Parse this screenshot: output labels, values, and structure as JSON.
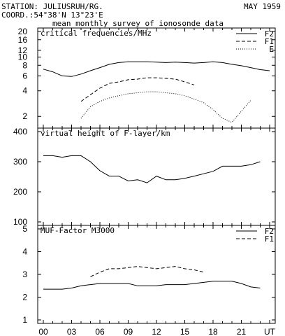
{
  "header": {
    "station": "STATION: JULIUSRUH/RG.",
    "coord": "COORD.:54°38'N 13°23'E",
    "date": "MAY 1959",
    "subtitle": "mean monthly survey of ionosonde data"
  },
  "chart_data": [
    {
      "type": "line",
      "title": "critical frequencies/MHz",
      "yscale": "log",
      "ylim": [
        1.6,
        20
      ],
      "yticks": [
        "20",
        "16",
        "12",
        "10",
        "8",
        "6",
        "4",
        "2"
      ],
      "legend_position": "top-right",
      "x": [
        0,
        1,
        2,
        3,
        4,
        5,
        6,
        7,
        8,
        9,
        10,
        11,
        12,
        13,
        14,
        15,
        16,
        17,
        18,
        19,
        20,
        21,
        22,
        23,
        24
      ],
      "series": [
        {
          "name": "F2",
          "style": "solid",
          "values": [
            7.2,
            6.7,
            6.0,
            5.9,
            6.3,
            6.9,
            7.5,
            8.2,
            8.6,
            8.8,
            8.8,
            8.8,
            8.7,
            8.6,
            8.7,
            8.6,
            8.5,
            8.6,
            8.8,
            8.6,
            8.2,
            7.9,
            7.5,
            7.1,
            6.9
          ]
        },
        {
          "name": "F1",
          "style": "dashed",
          "values": [
            null,
            null,
            null,
            null,
            3.0,
            3.6,
            4.3,
            4.9,
            5.1,
            5.4,
            5.5,
            5.7,
            5.7,
            5.6,
            5.5,
            5.1,
            4.7,
            null,
            null,
            null,
            null,
            null,
            null,
            null,
            null
          ]
        },
        {
          "name": "E",
          "style": "dotted",
          "values": [
            null,
            null,
            null,
            null,
            1.9,
            2.6,
            3.0,
            3.3,
            3.5,
            3.7,
            3.8,
            3.9,
            3.9,
            3.8,
            3.7,
            3.5,
            3.2,
            2.9,
            2.4,
            1.9,
            1.7,
            2.3,
            3.1,
            null,
            null
          ]
        }
      ]
    },
    {
      "type": "line",
      "title": "virtual height of F-layer/km",
      "ylim": [
        100,
        400
      ],
      "yticks": [
        "400",
        "300",
        "200",
        "100"
      ],
      "x": [
        0,
        1,
        2,
        3,
        4,
        5,
        6,
        7,
        8,
        9,
        10,
        11,
        12,
        13,
        14,
        15,
        16,
        17,
        18,
        19,
        20,
        21,
        22,
        23,
        24
      ],
      "series": [
        {
          "name": "",
          "style": "solid",
          "values": [
            320,
            320,
            315,
            320,
            320,
            300,
            270,
            252,
            252,
            236,
            240,
            230,
            252,
            240,
            240,
            245,
            252,
            260,
            268,
            285,
            285,
            285,
            290,
            300,
            null
          ]
        }
      ]
    },
    {
      "type": "line",
      "title": "MUF-Factor M3000",
      "ylim": [
        1,
        5
      ],
      "yticks": [
        "5",
        "4",
        "3",
        "2",
        "1"
      ],
      "legend_position": "top-right",
      "xlim": [
        0,
        24
      ],
      "xticks": [
        "00",
        "03",
        "06",
        "09",
        "12",
        "15",
        "18",
        "21",
        "UT"
      ],
      "x": [
        0,
        1,
        2,
        3,
        4,
        5,
        6,
        7,
        8,
        9,
        10,
        11,
        12,
        13,
        14,
        15,
        16,
        17,
        18,
        19,
        20,
        21,
        22,
        23,
        24
      ],
      "series": [
        {
          "name": "F2",
          "style": "solid",
          "values": [
            2.35,
            2.35,
            2.35,
            2.4,
            2.5,
            2.55,
            2.6,
            2.6,
            2.6,
            2.6,
            2.5,
            2.5,
            2.5,
            2.55,
            2.55,
            2.55,
            2.6,
            2.65,
            2.7,
            2.7,
            2.7,
            2.6,
            2.45,
            2.4,
            null
          ]
        },
        {
          "name": "F1",
          "style": "dashed",
          "values": [
            null,
            null,
            null,
            null,
            null,
            2.9,
            3.1,
            3.25,
            3.25,
            3.3,
            3.35,
            3.3,
            3.25,
            3.3,
            3.35,
            3.25,
            3.2,
            3.1,
            null,
            null,
            null,
            null,
            null,
            null,
            null
          ]
        }
      ]
    }
  ]
}
